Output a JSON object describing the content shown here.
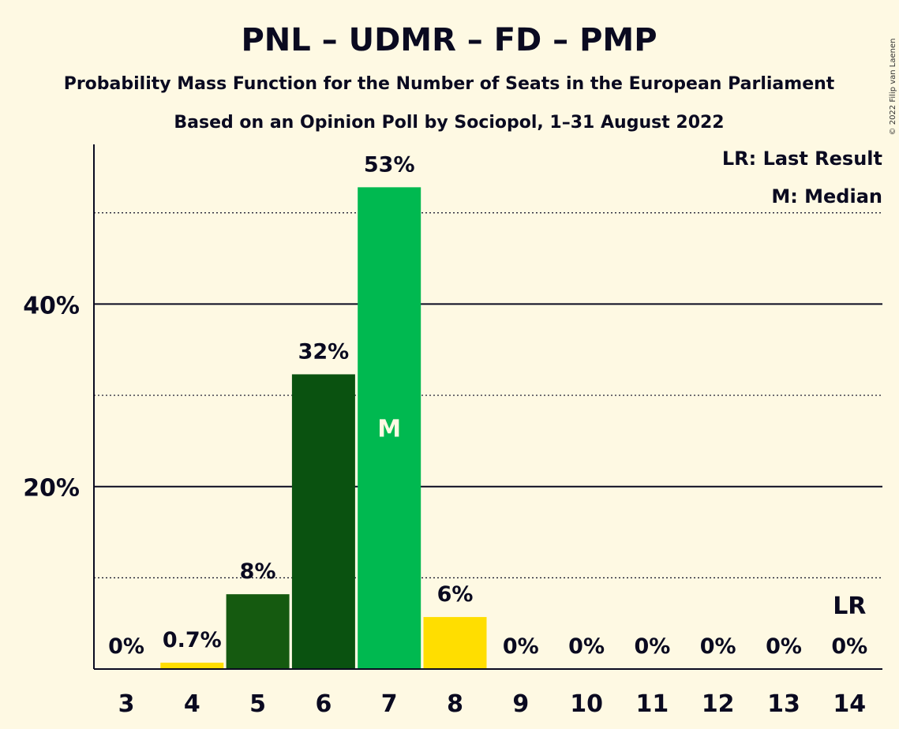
{
  "title": "PNL – UDMR – FD – PMP",
  "subtitle": "Probability Mass Function for the Number of Seats in the European Parliament",
  "subtitle2": "Based on an Opinion Poll by Sociopol, 1–31 August 2022",
  "copyright": "© 2022 Filip van Laenen",
  "legend": {
    "last_result": "LR: Last Result",
    "median": "M: Median"
  },
  "colors": {
    "background": "#FEF9E3",
    "yellow": "#FFDE00",
    "dark_green": "#0A5210",
    "medium_green": "#155A10",
    "bright_green": "#00B950"
  },
  "chart_data": {
    "type": "bar",
    "categories": [
      "3",
      "4",
      "5",
      "6",
      "7",
      "8",
      "9",
      "10",
      "11",
      "12",
      "13",
      "14"
    ],
    "values": [
      0,
      0.7,
      8,
      32,
      53,
      6,
      0,
      0,
      0,
      0,
      0,
      0
    ],
    "data_labels": [
      "0%",
      "0.7%",
      "8%",
      "32%",
      "53%",
      "6%",
      "0%",
      "0%",
      "0%",
      "0%",
      "0%",
      "0%"
    ],
    "bar_colors": [
      "#FFDE00",
      "#FFDE00",
      "#155A10",
      "#0A5210",
      "#00B950",
      "#FFDE00",
      "#FFDE00",
      "#FFDE00",
      "#FFDE00",
      "#FFDE00",
      "#FFDE00",
      "#FFDE00"
    ],
    "bar_values_exact": [
      0,
      0.7,
      8.2,
      32.3,
      52.8,
      5.7,
      0,
      0,
      0,
      0,
      0,
      0
    ],
    "median_category": "7",
    "median_label": "M",
    "last_result_category": "14",
    "last_result_label": "LR",
    "ylim": [
      0,
      57.5
    ],
    "yticks": [
      {
        "value": 20,
        "label": "20%"
      },
      {
        "value": 40,
        "label": "40%"
      }
    ],
    "dotted_gridlines": [
      10,
      30,
      50
    ]
  }
}
